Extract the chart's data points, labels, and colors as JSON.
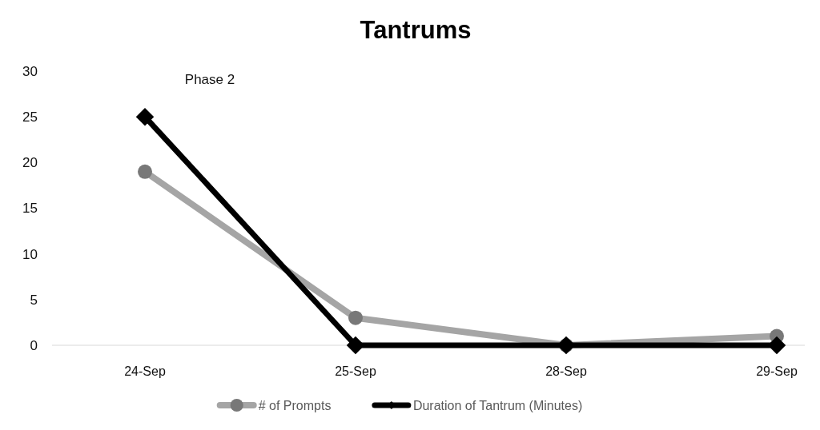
{
  "chart_data": {
    "type": "line",
    "title": "Tantrums",
    "categories": [
      "24-Sep",
      "25-Sep",
      "28-Sep",
      "29-Sep"
    ],
    "series": [
      {
        "name": "# of Prompts",
        "color": "#a5a5a5",
        "marker": "circle",
        "values": [
          19,
          3,
          0,
          1
        ]
      },
      {
        "name": "Duration of Tantrum (Minutes)",
        "color": "#000000",
        "marker": "diamond",
        "values": [
          25,
          0,
          0,
          0
        ]
      }
    ],
    "ylim": [
      0,
      30
    ],
    "yticks": [
      0,
      5,
      10,
      15,
      20,
      25,
      30
    ],
    "annotations": [
      "Phase 2"
    ],
    "legend": "bottom",
    "grid": false
  }
}
